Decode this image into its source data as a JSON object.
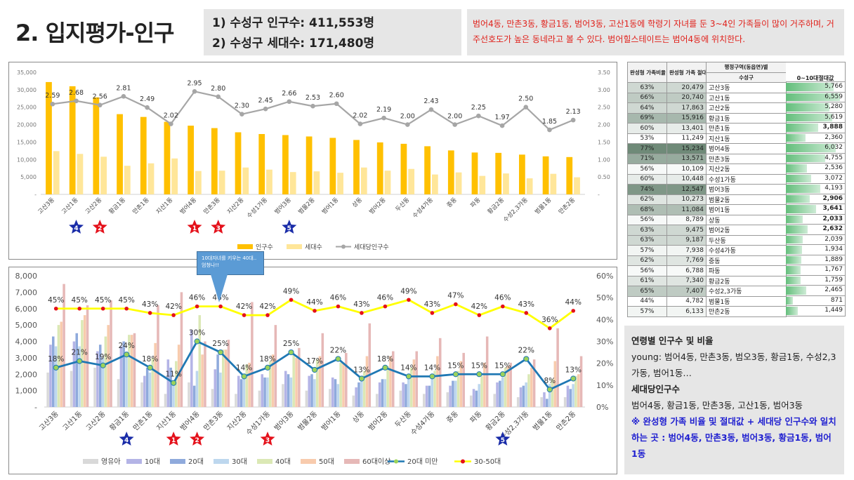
{
  "header": {
    "title": "2. 입지평가-인구",
    "stat1": "1)   수성구 인구수: 411,553명",
    "stat2": "2)   수성구 세대수: 171,480명",
    "note": "범어4동, 만촌3동, 황금1동, 범어3동, 고산1동에 학령기 자녀를 둔 3~4인 가족들이 많이 거주하며, 거주선호도가 높은 동네라고 볼 수 있다. 범어힐스테이트는 범어4동에 위치한다."
  },
  "colors": {
    "gold": "#ffc000",
    "lightgold": "#ffe699",
    "gray": "#a6a6a6",
    "yellow": "#ffff00",
    "blue": "#1f78b4",
    "star_red": "#e4111b",
    "star_blue": "#1a2ca8"
  },
  "callout": {
    "text": "10대자녀를 키우는 40대.. 엄청나!!"
  },
  "chart_data": [
    {
      "type": "bar",
      "categories": [
        "고산3동",
        "고산1동",
        "고산2동",
        "황금1동",
        "만촌1동",
        "지산1동",
        "범어4동",
        "만촌3동",
        "지산2동",
        "수성1가동",
        "범어3동",
        "범물2동",
        "범어1동",
        "상동",
        "범어2동",
        "두산동",
        "수성4가동",
        "중동",
        "파동",
        "황금2동",
        "수성2,3가동",
        "범물1동",
        "만촌2동"
      ],
      "series": [
        {
          "name": "인구수",
          "axis": "left",
          "values": [
            32200,
            31000,
            27800,
            23000,
            22200,
            20800,
            19700,
            19000,
            17800,
            17300,
            17000,
            16600,
            16200,
            15600,
            14900,
            14500,
            13800,
            12600,
            12000,
            11900,
            11400,
            10900,
            10700
          ]
        },
        {
          "name": "세대수",
          "axis": "left",
          "values": [
            12400,
            11600,
            10800,
            8200,
            8900,
            10300,
            6700,
            6800,
            7700,
            7100,
            6400,
            6600,
            6200,
            7700,
            6800,
            7300,
            5700,
            6300,
            5300,
            6000,
            4600,
            5900,
            4900
          ]
        },
        {
          "name": "세대당인구수",
          "type": "line",
          "axis": "right",
          "values": [
            2.59,
            2.68,
            2.56,
            2.81,
            2.49,
            2.02,
            2.95,
            2.8,
            2.3,
            2.45,
            2.66,
            2.53,
            2.6,
            2.02,
            2.19,
            2.0,
            2.43,
            2.0,
            2.25,
            1.97,
            2.5,
            1.85,
            2.13
          ]
        }
      ],
      "ylim": [
        0,
        35000
      ],
      "y2lim": [
        0,
        3.5
      ],
      "yticks": [
        "-",
        "5,000",
        "10,000",
        "15,000",
        "20,000",
        "25,000",
        "30,000",
        "35,000"
      ],
      "y2ticks": [
        "-",
        "0.50",
        "1.00",
        "1.50",
        "2.00",
        "2.50",
        "3.00",
        "3.50"
      ],
      "markers": [
        {
          "category": "고산1동",
          "label": "4",
          "color": "blue"
        },
        {
          "category": "고산2동",
          "label": "2",
          "color": "red"
        },
        {
          "category": "범어4동",
          "label": "1",
          "color": "red"
        },
        {
          "category": "만촌3동",
          "label": "3",
          "color": "red"
        },
        {
          "category": "범어3동",
          "label": "5",
          "color": "blue"
        }
      ],
      "legend": "bottom"
    },
    {
      "type": "bar",
      "categories": [
        "고산3동",
        "고산1동",
        "고산2동",
        "황금1동",
        "만촌1동",
        "지산1동",
        "범어4동",
        "만촌3동",
        "지산2동",
        "수성1가동",
        "범어3동",
        "범물2동",
        "범어1동",
        "상동",
        "범어2동",
        "두산동",
        "수성4가동",
        "중동",
        "파동",
        "황금2동",
        "수성2,3가동",
        "범물1동",
        "만촌2동"
      ],
      "series": [
        {
          "name": "영유아",
          "values": [
            2100,
            2200,
            2400,
            1700,
            1500,
            800,
            1500,
            1100,
            800,
            1000,
            1400,
            1000,
            1100,
            700,
            800,
            1000,
            800,
            900,
            700,
            800,
            600,
            600,
            600
          ]
        },
        {
          "name": "10대",
          "values": [
            3800,
            4000,
            3400,
            3700,
            1900,
            2900,
            4700,
            2300,
            1900,
            2000,
            2200,
            1900,
            1800,
            1200,
            1500,
            1500,
            1300,
            1300,
            1100,
            1500,
            1200,
            900,
            1300
          ]
        },
        {
          "name": "20대",
          "values": [
            4300,
            4500,
            3800,
            4000,
            2400,
            2400,
            1300,
            3200,
            1700,
            1800,
            2000,
            2000,
            1700,
            1500,
            1700,
            1400,
            1300,
            1600,
            1000,
            1600,
            1300,
            500,
            1100
          ]
        },
        {
          "name": "30대",
          "values": [
            3700,
            3700,
            3000,
            3100,
            2100,
            1600,
            2200,
            2100,
            1800,
            1800,
            1800,
            1700,
            1400,
            1800,
            1700,
            1800,
            1700,
            1600,
            1400,
            1800,
            1500,
            1400,
            1400
          ]
        },
        {
          "name": "40대",
          "values": [
            5000,
            5300,
            4300,
            4400,
            3000,
            2800,
            5600,
            3500,
            2600,
            2800,
            3200,
            2900,
            2700,
            2200,
            2500,
            2400,
            2200,
            2200,
            1900,
            2400,
            2000,
            1700,
            1900
          ]
        },
        {
          "name": "50대",
          "values": [
            5200,
            5600,
            5000,
            4400,
            3900,
            3800,
            3200,
            3500,
            2700,
            3200,
            3000,
            3100,
            2700,
            3100,
            3100,
            2900,
            3100,
            2800,
            2700,
            2500,
            2400,
            2800,
            2000
          ]
        },
        {
          "name": "60대이상",
          "values": [
            7500,
            6200,
            6500,
            4500,
            6200,
            7000,
            4000,
            4100,
            6400,
            5000,
            3600,
            4500,
            3300,
            5100,
            3400,
            3400,
            4200,
            3300,
            4300,
            2700,
            2900,
            4800,
            3100
          ]
        },
        {
          "name": "20대 미만",
          "type": "line",
          "axis": "right",
          "values": [
            18,
            21,
            19,
            24,
            18,
            11,
            30,
            25,
            14,
            18,
            25,
            17,
            22,
            13,
            18,
            14,
            14,
            15,
            15,
            15,
            22,
            8,
            13
          ]
        },
        {
          "name": "30-50대",
          "type": "line",
          "axis": "right",
          "values": [
            45,
            45,
            45,
            45,
            43,
            42,
            46,
            46,
            42,
            42,
            49,
            44,
            46,
            43,
            46,
            49,
            43,
            47,
            42,
            46,
            43,
            36,
            44
          ]
        }
      ],
      "ylim": [
        0,
        8000
      ],
      "y2lim": [
        0,
        60
      ],
      "yticks": [
        "-",
        "1,000",
        "2,000",
        "3,000",
        "4,000",
        "5,000",
        "6,000",
        "7,000",
        "8,000"
      ],
      "y2ticks": [
        "0%",
        "10%",
        "20%",
        "30%",
        "40%",
        "50%",
        "60%"
      ],
      "markers": [
        {
          "category": "황금1동",
          "label": "4",
          "color": "blue"
        },
        {
          "category": "지산1동",
          "label": "1",
          "color": "red"
        },
        {
          "category": "범어4동",
          "label": "2",
          "color": "red"
        },
        {
          "category": "수성1가동",
          "label": "3",
          "color": "red"
        },
        {
          "category": "황금2동",
          "label": "5",
          "color": "blue"
        }
      ],
      "legend": "bottom"
    }
  ],
  "table": {
    "headers": {
      "ratio": "완성형 가족비율",
      "absolute": "완성형 가족 절대값",
      "region": "행정구역(동읍면)별",
      "region_sub": "수성구",
      "bar": "0~10대절대값"
    },
    "rows": [
      {
        "ratio": "63%",
        "abs": "20,479",
        "dong": "고산3동",
        "val": "5,766",
        "num": 5766,
        "shade": 0.3,
        "bold": false
      },
      {
        "ratio": "66%",
        "abs": "20,740",
        "dong": "고산1동",
        "val": "6,559",
        "num": 6559,
        "shade": 0.4,
        "bold": false
      },
      {
        "ratio": "64%",
        "abs": "17,863",
        "dong": "고산2동",
        "val": "5,280",
        "num": 5280,
        "shade": 0.3,
        "bold": false
      },
      {
        "ratio": "69%",
        "abs": "15,916",
        "dong": "황금1동",
        "val": "5,619",
        "num": 5619,
        "shade": 0.55,
        "bold": false
      },
      {
        "ratio": "60%",
        "abs": "13,401",
        "dong": "만촌1동",
        "val": "3,888",
        "num": 3888,
        "shade": 0.15,
        "bold": true
      },
      {
        "ratio": "53%",
        "abs": "11,249",
        "dong": "지산1동",
        "val": "2,360",
        "num": 2360,
        "shade": 0.0,
        "bold": false
      },
      {
        "ratio": "77%",
        "abs": "15,234",
        "dong": "범어4동",
        "val": "6,032",
        "num": 6032,
        "shade": 0.9,
        "bold": false
      },
      {
        "ratio": "71%",
        "abs": "13,571",
        "dong": "만촌3동",
        "val": "4,755",
        "num": 4755,
        "shade": 0.65,
        "bold": false
      },
      {
        "ratio": "56%",
        "abs": "10,109",
        "dong": "지산2동",
        "val": "2,536",
        "num": 2536,
        "shade": 0.05,
        "bold": false
      },
      {
        "ratio": "60%",
        "abs": "10,448",
        "dong": "수성1가동",
        "val": "3,072",
        "num": 3072,
        "shade": 0.15,
        "bold": false
      },
      {
        "ratio": "74%",
        "abs": "12,547",
        "dong": "범어3동",
        "val": "4,193",
        "num": 4193,
        "shade": 0.8,
        "bold": false
      },
      {
        "ratio": "62%",
        "abs": "10,273",
        "dong": "범물2동",
        "val": "2,906",
        "num": 2906,
        "shade": 0.2,
        "bold": true
      },
      {
        "ratio": "68%",
        "abs": "11,084",
        "dong": "범어1동",
        "val": "3,641",
        "num": 3641,
        "shade": 0.5,
        "bold": true
      },
      {
        "ratio": "56%",
        "abs": "8,789",
        "dong": "상동",
        "val": "2,033",
        "num": 2033,
        "shade": 0.05,
        "bold": true
      },
      {
        "ratio": "63%",
        "abs": "9,475",
        "dong": "범어2동",
        "val": "2,632",
        "num": 2632,
        "shade": 0.3,
        "bold": true
      },
      {
        "ratio": "63%",
        "abs": "9,187",
        "dong": "두산동",
        "val": "2,039",
        "num": 2039,
        "shade": 0.3,
        "bold": false
      },
      {
        "ratio": "57%",
        "abs": "7,938",
        "dong": "수성4가동",
        "val": "1,934",
        "num": 1934,
        "shade": 0.08,
        "bold": false
      },
      {
        "ratio": "62%",
        "abs": "7,769",
        "dong": "중동",
        "val": "1,889",
        "num": 1889,
        "shade": 0.2,
        "bold": false
      },
      {
        "ratio": "56%",
        "abs": "6,788",
        "dong": "파동",
        "val": "1,767",
        "num": 1767,
        "shade": 0.05,
        "bold": false
      },
      {
        "ratio": "61%",
        "abs": "7,340",
        "dong": "황금2동",
        "val": "1,759",
        "num": 1759,
        "shade": 0.2,
        "bold": false
      },
      {
        "ratio": "65%",
        "abs": "7,407",
        "dong": "수성2,3가동",
        "val": "2,465",
        "num": 2465,
        "shade": 0.4,
        "bold": false
      },
      {
        "ratio": "44%",
        "abs": "4,782",
        "dong": "범물1동",
        "val": "871",
        "num": 871,
        "shade": 0.0,
        "bold": false
      },
      {
        "ratio": "57%",
        "abs": "6,133",
        "dong": "만촌2동",
        "val": "1,449",
        "num": 1449,
        "shade": 0.08,
        "bold": false
      }
    ]
  },
  "summary": {
    "h1": "연령별 인구수 및 비율",
    "p1": "young: 범어4동, 만촌3동, 범오3동, 황금1동, 수성2,3가동, 범어1동…",
    "h2": "세대당인구수",
    "p2": "범어4동, 황금1동, 만촌3동, 고산1동, 범어3동",
    "p3": "※ 완성형 가족 비율 및 절대값 + 세대당 인구수와 일치하는 곳 : 범어4동, 만촌3동, 범어3동, 황금1동, 범어1동"
  }
}
